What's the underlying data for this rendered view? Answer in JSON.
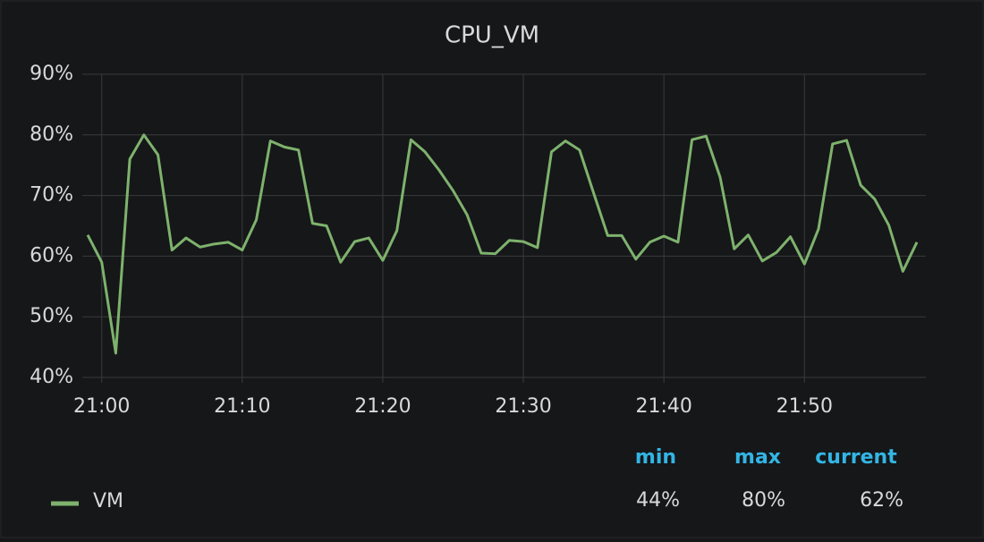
{
  "chart_data": {
    "type": "line",
    "title": "CPU_VM",
    "x": [
      "20:59",
      "21:00",
      "21:01",
      "21:02",
      "21:03",
      "21:04",
      "21:05",
      "21:06",
      "21:07",
      "21:08",
      "21:09",
      "21:10",
      "21:11",
      "21:12",
      "21:13",
      "21:14",
      "21:15",
      "21:16",
      "21:17",
      "21:18",
      "21:19",
      "21:20",
      "21:21",
      "21:22",
      "21:23",
      "21:24",
      "21:25",
      "21:26",
      "21:27",
      "21:28",
      "21:29",
      "21:30",
      "21:31",
      "21:32",
      "21:33",
      "21:34",
      "21:35",
      "21:36",
      "21:37",
      "21:38",
      "21:39",
      "21:40",
      "21:41",
      "21:42",
      "21:43",
      "21:44",
      "21:45",
      "21:46",
      "21:47",
      "21:48",
      "21:49",
      "21:50",
      "21:51",
      "21:52",
      "21:53",
      "21:54",
      "21:55",
      "21:56",
      "21:57",
      "21:58"
    ],
    "series": [
      {
        "name": "VM",
        "color": "#7eb26d",
        "values": [
          63.5,
          59,
          44,
          76,
          80,
          76.7,
          61,
          63,
          61.5,
          62,
          62.3,
          61,
          66,
          79,
          78,
          77.5,
          65.4,
          65,
          59,
          62.4,
          63,
          59.3,
          64.2,
          79.2,
          77.2,
          74.2,
          70.8,
          66.8,
          60.5,
          60.4,
          62.6,
          62.4,
          61.4,
          77.2,
          79,
          77.5,
          70.4,
          63.4,
          63.4,
          59.5,
          62.3,
          63.3,
          62.3,
          79.2,
          79.8,
          73,
          61.2,
          63.5,
          59.2,
          60.6,
          63.2,
          58.7,
          64.5,
          78.5,
          79.1,
          71.7,
          69.4,
          65.1,
          57.5,
          62.3
        ]
      }
    ],
    "xlim": [
      "20:59",
      "21:58"
    ],
    "xticks": [
      "21:00",
      "21:10",
      "21:20",
      "21:30",
      "21:40",
      "21:50"
    ],
    "ylim": [
      40,
      90
    ],
    "yticks": [
      {
        "value": 40,
        "label": "40%"
      },
      {
        "value": 50,
        "label": "50%"
      },
      {
        "value": 60,
        "label": "60%"
      },
      {
        "value": 70,
        "label": "70%"
      },
      {
        "value": 80,
        "label": "80%"
      },
      {
        "value": 90,
        "label": "90%"
      }
    ],
    "grid": true,
    "stats": {
      "headers": [
        "min",
        "max",
        "current"
      ],
      "values": [
        "44%",
        "80%",
        "62%"
      ]
    }
  }
}
